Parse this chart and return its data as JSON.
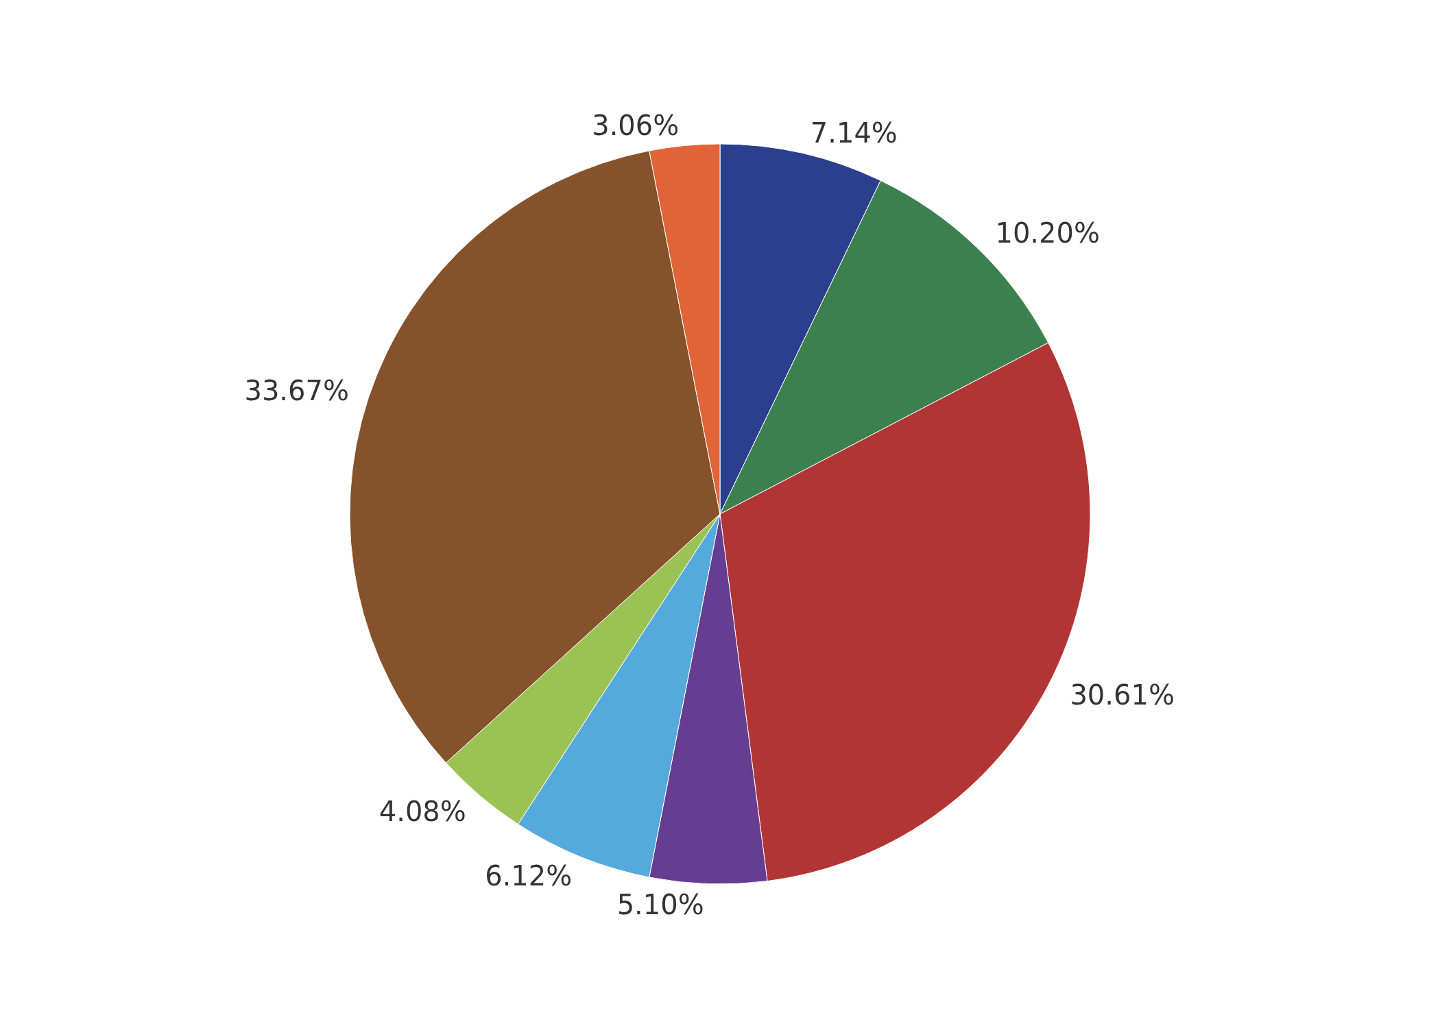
{
  "chart_data": {
    "type": "pie",
    "categories": [
      null,
      null,
      null,
      null,
      null,
      null,
      null,
      null
    ],
    "values": [
      7.14,
      10.2,
      30.61,
      5.1,
      6.12,
      4.08,
      33.67,
      3.06
    ],
    "value_labels": [
      "7.14%",
      "10.20%",
      "30.61%",
      "5.10%",
      "6.12%",
      "4.08%",
      "33.67%",
      "3.06%"
    ],
    "colors": [
      "#2b3f8e",
      "#3d8050",
      "#b23535",
      "#663d91",
      "#55a9dc",
      "#9bc255",
      "#86522b",
      "#e06438"
    ]
  }
}
